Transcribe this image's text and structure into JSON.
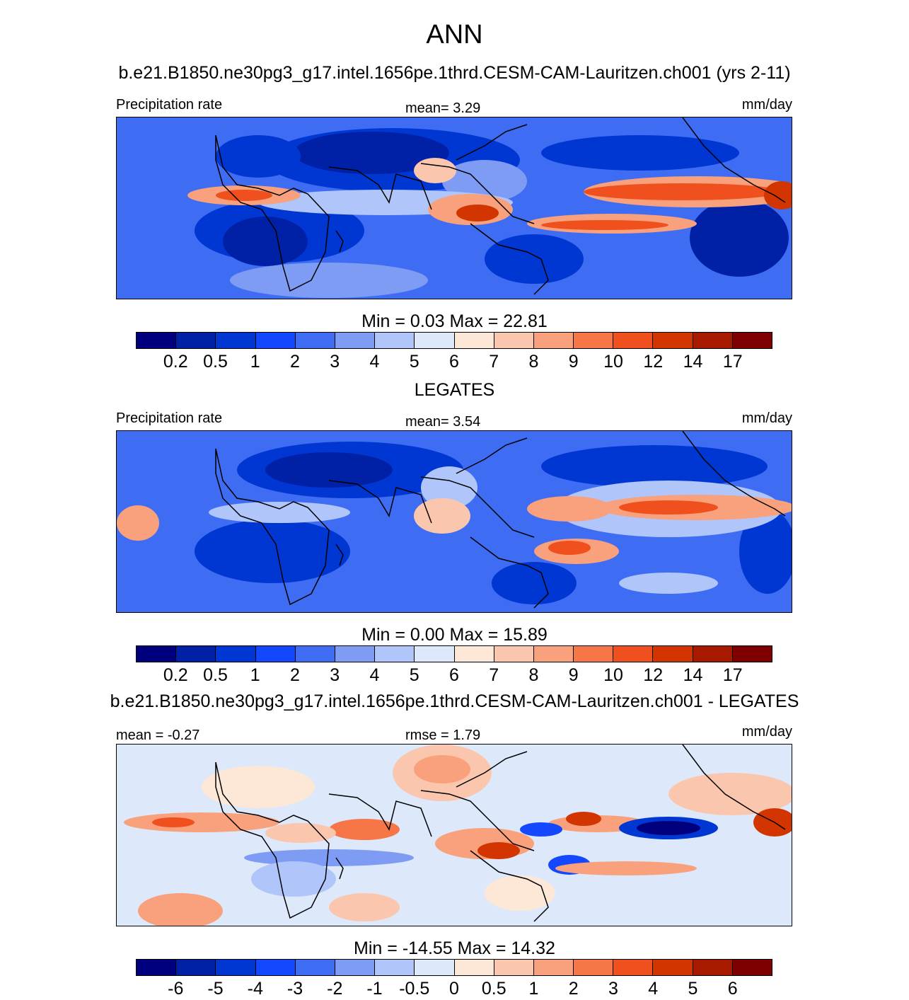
{
  "title": "ANN",
  "panels": [
    {
      "id": "model",
      "case_title": "b.e21.B1850.ne30pg3_g17.intel.1656pe.1thrd.CESM-CAM-Lauritzen.ch001 (yrs 2-11)",
      "left_label": "Precipitation rate",
      "center_label": "mean=   3.29",
      "right_label": "mm/day",
      "minmax": "Min =   0.03 Max =  22.81",
      "colorbar_labels": [
        "0.2",
        "0.5",
        "1",
        "2",
        "3",
        "4",
        "5",
        "6",
        "7",
        "8",
        "9",
        "10",
        "12",
        "14",
        "17"
      ]
    },
    {
      "id": "obs",
      "case_title": "LEGATES",
      "left_label": "Precipitation rate",
      "center_label": "mean=   3.54",
      "right_label": "mm/day",
      "minmax": "Min =   0.00 Max =  15.89",
      "colorbar_labels": [
        "0.2",
        "0.5",
        "1",
        "2",
        "3",
        "4",
        "5",
        "6",
        "7",
        "8",
        "9",
        "10",
        "12",
        "14",
        "17"
      ]
    },
    {
      "id": "diff",
      "case_title": "b.e21.B1850.ne30pg3_g17.intel.1656pe.1thrd.CESM-CAM-Lauritzen.ch001 - LEGATES",
      "left_label": "mean =  -0.27",
      "center_label": "rmse =   1.79",
      "right_label": "mm/day",
      "minmax": "Min = -14.55 Max =  14.32",
      "colorbar_labels": [
        "-6",
        "-5",
        "-4",
        "-3",
        "-2",
        "-1",
        "-0.5",
        "0",
        "0.5",
        "1",
        "2",
        "3",
        "4",
        "5",
        "6"
      ]
    }
  ],
  "colors": {
    "palette": [
      "#00007f",
      "#0021a6",
      "#0037d2",
      "#1448ff",
      "#3e6df4",
      "#7e9cf4",
      "#b0c6fa",
      "#dde8fb",
      "#fde8d8",
      "#fbc6ae",
      "#f8a17c",
      "#f77648",
      "#f0501d",
      "#d23500",
      "#a81a00",
      "#7e0000"
    ],
    "land_outline": "#000000"
  },
  "chart_data": [
    {
      "type": "heatmap",
      "title": "b.e21.B1850.ne30pg3_g17.intel.1656pe.1thrd.CESM-CAM-Lauritzen.ch001 (yrs 2-11)",
      "variable": "Precipitation rate",
      "units": "mm/day",
      "mean": 3.29,
      "min": 0.03,
      "max": 22.81,
      "levels": [
        0.2,
        0.5,
        1,
        2,
        3,
        4,
        5,
        6,
        7,
        8,
        9,
        10,
        12,
        14,
        17
      ]
    },
    {
      "type": "heatmap",
      "title": "LEGATES",
      "variable": "Precipitation rate",
      "units": "mm/day",
      "mean": 3.54,
      "min": 0.0,
      "max": 15.89,
      "levels": [
        0.2,
        0.5,
        1,
        2,
        3,
        4,
        5,
        6,
        7,
        8,
        9,
        10,
        12,
        14,
        17
      ]
    },
    {
      "type": "heatmap",
      "title": "b.e21.B1850.ne30pg3_g17.intel.1656pe.1thrd.CESM-CAM-Lauritzen.ch001 - LEGATES",
      "units": "mm/day",
      "mean": -0.27,
      "rmse": 1.79,
      "min": -14.55,
      "max": 14.32,
      "levels": [
        -6,
        -5,
        -4,
        -3,
        -2,
        -1,
        -0.5,
        0,
        0.5,
        1,
        2,
        3,
        4,
        5,
        6
      ]
    }
  ]
}
